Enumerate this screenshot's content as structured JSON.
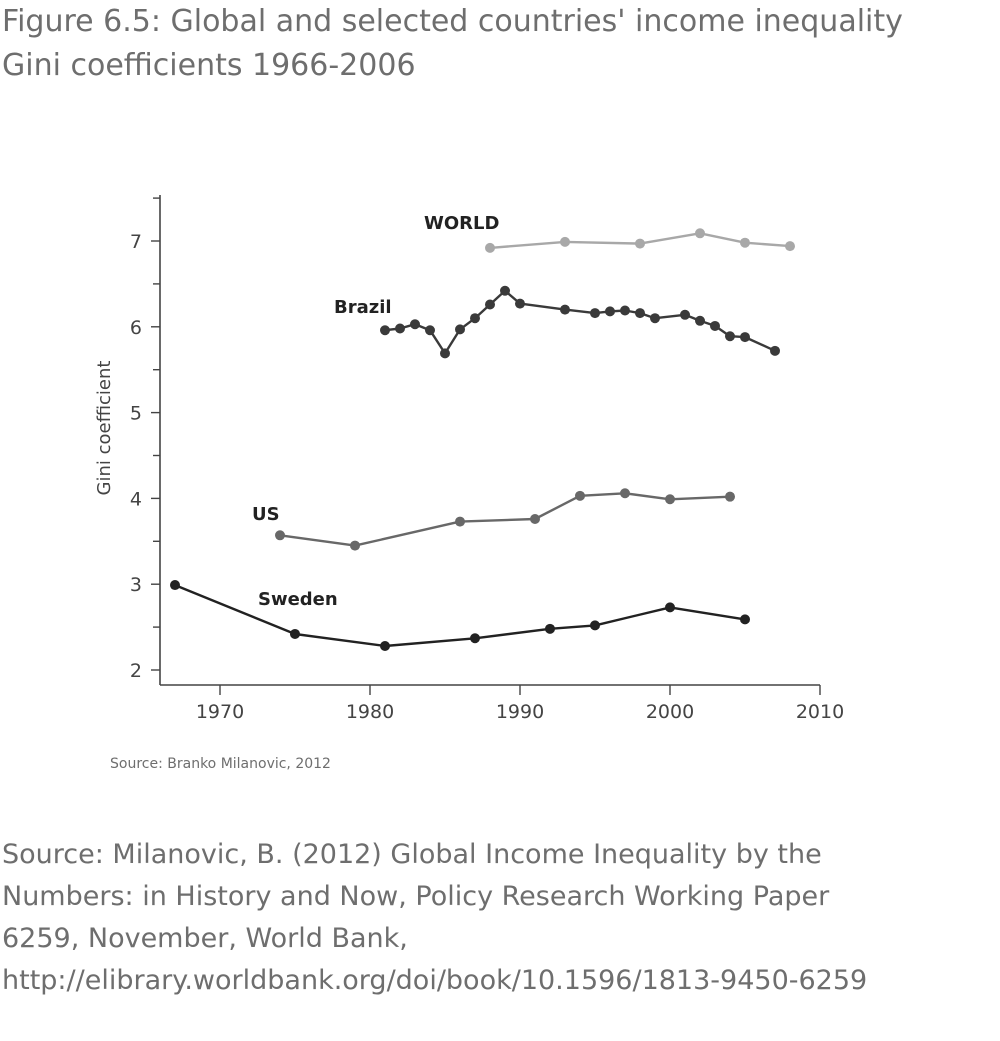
{
  "figure": {
    "title_line1": "Figure 6.5: Global and selected countries' income inequality",
    "title_line2": "Gini coefficients 1966-2006"
  },
  "chart_data": {
    "type": "line",
    "ylabel": "Gini coefficient",
    "xlabel": "",
    "xlim": [
      1966,
      2010
    ],
    "ylim": [
      1.85,
      7.5
    ],
    "xticks": [
      1970,
      1980,
      1990,
      2000,
      2010
    ],
    "yticks": [
      2,
      3,
      4,
      5,
      6,
      7
    ],
    "grid": false,
    "series": [
      {
        "name": "WORLD",
        "color": "#a8a8a8",
        "x": [
          1988,
          1993,
          1998,
          2002,
          2005,
          2008
        ],
        "y": [
          6.92,
          6.99,
          6.97,
          7.09,
          6.98,
          6.94
        ]
      },
      {
        "name": "Brazil",
        "color": "#3a3a3a",
        "x": [
          1981,
          1982,
          1983,
          1984,
          1985,
          1986,
          1987,
          1988,
          1989,
          1990,
          1993,
          1995,
          1996,
          1997,
          1998,
          1999,
          2001,
          2002,
          2003,
          2004,
          2005,
          2007
        ],
        "y": [
          5.96,
          5.98,
          6.03,
          5.96,
          5.69,
          5.97,
          6.1,
          6.26,
          6.42,
          6.27,
          6.2,
          6.16,
          6.18,
          6.19,
          6.16,
          6.1,
          6.14,
          6.07,
          6.01,
          5.89,
          5.88,
          5.72
        ]
      },
      {
        "name": "US",
        "color": "#686868",
        "x": [
          1974,
          1979,
          1986,
          1991,
          1994,
          1997,
          2000,
          2004
        ],
        "y": [
          3.57,
          3.45,
          3.73,
          3.76,
          4.03,
          4.06,
          3.99,
          4.02
        ]
      },
      {
        "name": "Sweden",
        "color": "#222222",
        "x": [
          1967,
          1975,
          1981,
          1987,
          1992,
          1995,
          2000,
          2005
        ],
        "y": [
          2.99,
          2.42,
          2.28,
          2.37,
          2.48,
          2.52,
          2.73,
          2.59
        ]
      }
    ],
    "source_note": "Source: Branko Milanovic, 2012"
  },
  "source": {
    "line1": "Source: Milanovic, B. (2012) Global Income Inequality by the",
    "line2": "Numbers: in History and Now, Policy Research Working Paper",
    "line3": "6259, November, World Bank,",
    "line4": "http://elibrary.worldbank.org/doi/book/10.1596/1813-9450-6259"
  }
}
